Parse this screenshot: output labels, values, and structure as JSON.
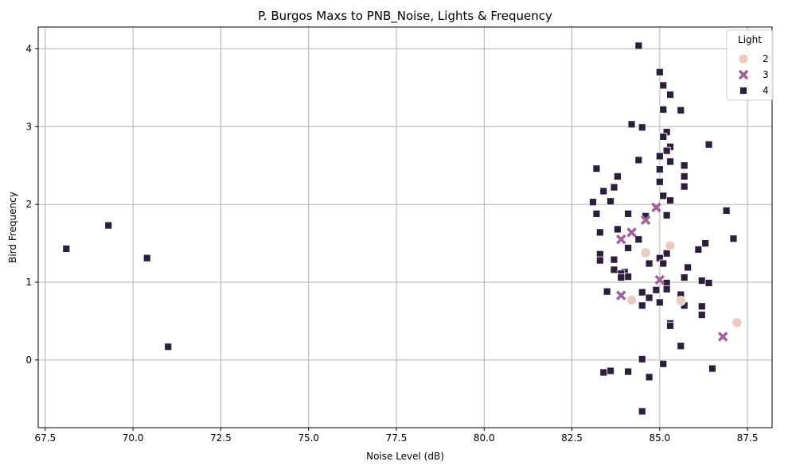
{
  "chart_data": {
    "type": "scatter",
    "title": "P. Burgos Maxs to PNB_Noise, Lights & Frequency",
    "xlabel": "Noise Level (dB)",
    "ylabel": "Bird Frequency",
    "xlim": [
      67.3,
      88.2
    ],
    "ylim": [
      -0.87,
      4.28
    ],
    "x_ticks": [
      67.5,
      70.0,
      72.5,
      75.0,
      77.5,
      80.0,
      82.5,
      85.0,
      87.5
    ],
    "x_tick_labels": [
      "67.5",
      "70.0",
      "72.5",
      "75.0",
      "77.5",
      "80.0",
      "82.5",
      "85.0",
      "87.5"
    ],
    "y_ticks": [
      0,
      1,
      2,
      3,
      4
    ],
    "y_tick_labels": [
      "0",
      "1",
      "2",
      "3",
      "4"
    ],
    "grid": true,
    "legend": {
      "title": "Light",
      "position": "top-right"
    },
    "series": [
      {
        "name": "2",
        "marker": "circle",
        "color": "#eccbbf",
        "points": [
          [
            84.6,
            1.38
          ],
          [
            85.3,
            1.47
          ],
          [
            84.2,
            0.77
          ],
          [
            85.6,
            0.76
          ],
          [
            87.2,
            0.48
          ]
        ]
      },
      {
        "name": "3",
        "marker": "x",
        "color": "#a0619a",
        "points": [
          [
            83.9,
            1.55
          ],
          [
            84.2,
            1.64
          ],
          [
            84.6,
            1.8
          ],
          [
            84.9,
            1.96
          ],
          [
            85.0,
            1.03
          ],
          [
            83.9,
            0.83
          ],
          [
            86.8,
            0.3
          ]
        ]
      },
      {
        "name": "4",
        "marker": "square",
        "color": "#2d1e3e",
        "points": [
          [
            68.1,
            1.43
          ],
          [
            69.3,
            1.73
          ],
          [
            70.4,
            1.31
          ],
          [
            71.0,
            0.17
          ],
          [
            84.4,
            4.04
          ],
          [
            85.0,
            3.7
          ],
          [
            85.1,
            3.53
          ],
          [
            85.3,
            3.41
          ],
          [
            85.1,
            3.22
          ],
          [
            85.6,
            3.21
          ],
          [
            84.2,
            3.03
          ],
          [
            84.5,
            2.99
          ],
          [
            85.2,
            2.93
          ],
          [
            85.1,
            2.87
          ],
          [
            86.4,
            2.77
          ],
          [
            85.3,
            2.74
          ],
          [
            85.2,
            2.69
          ],
          [
            85.0,
            2.62
          ],
          [
            84.4,
            2.57
          ],
          [
            85.3,
            2.55
          ],
          [
            85.7,
            2.5
          ],
          [
            83.2,
            2.46
          ],
          [
            85.0,
            2.45
          ],
          [
            85.7,
            2.36
          ],
          [
            83.8,
            2.36
          ],
          [
            85.0,
            2.29
          ],
          [
            85.7,
            2.23
          ],
          [
            83.7,
            2.22
          ],
          [
            83.4,
            2.17
          ],
          [
            85.1,
            2.11
          ],
          [
            85.3,
            2.05
          ],
          [
            83.6,
            2.04
          ],
          [
            83.1,
            2.03
          ],
          [
            86.9,
            1.92
          ],
          [
            83.2,
            1.88
          ],
          [
            84.1,
            1.88
          ],
          [
            85.2,
            1.86
          ],
          [
            84.6,
            1.85
          ],
          [
            83.8,
            1.68
          ],
          [
            83.3,
            1.64
          ],
          [
            87.1,
            1.56
          ],
          [
            84.4,
            1.55
          ],
          [
            86.3,
            1.5
          ],
          [
            84.1,
            1.44
          ],
          [
            86.1,
            1.42
          ],
          [
            85.2,
            1.37
          ],
          [
            83.3,
            1.36
          ],
          [
            85.0,
            1.31
          ],
          [
            83.7,
            1.29
          ],
          [
            83.3,
            1.28
          ],
          [
            84.7,
            1.24
          ],
          [
            85.1,
            1.24
          ],
          [
            85.8,
            1.19
          ],
          [
            83.7,
            1.16
          ],
          [
            84.0,
            1.13
          ],
          [
            83.9,
            1.11
          ],
          [
            84.1,
            1.07
          ],
          [
            83.9,
            1.06
          ],
          [
            85.7,
            1.06
          ],
          [
            86.2,
            1.02
          ],
          [
            86.4,
            0.99
          ],
          [
            85.2,
            0.99
          ],
          [
            85.2,
            0.91
          ],
          [
            84.9,
            0.9
          ],
          [
            83.5,
            0.88
          ],
          [
            84.5,
            0.87
          ],
          [
            85.6,
            0.84
          ],
          [
            84.7,
            0.8
          ],
          [
            85.0,
            0.74
          ],
          [
            84.5,
            0.7
          ],
          [
            85.7,
            0.7
          ],
          [
            86.2,
            0.69
          ],
          [
            86.2,
            0.58
          ],
          [
            85.3,
            0.47
          ],
          [
            85.3,
            0.44
          ],
          [
            85.6,
            0.18
          ],
          [
            84.5,
            0.01
          ],
          [
            85.1,
            -0.05
          ],
          [
            86.5,
            -0.11
          ],
          [
            83.6,
            -0.14
          ],
          [
            83.4,
            -0.16
          ],
          [
            84.1,
            -0.15
          ],
          [
            84.7,
            -0.22
          ],
          [
            84.5,
            -0.66
          ]
        ]
      }
    ]
  }
}
